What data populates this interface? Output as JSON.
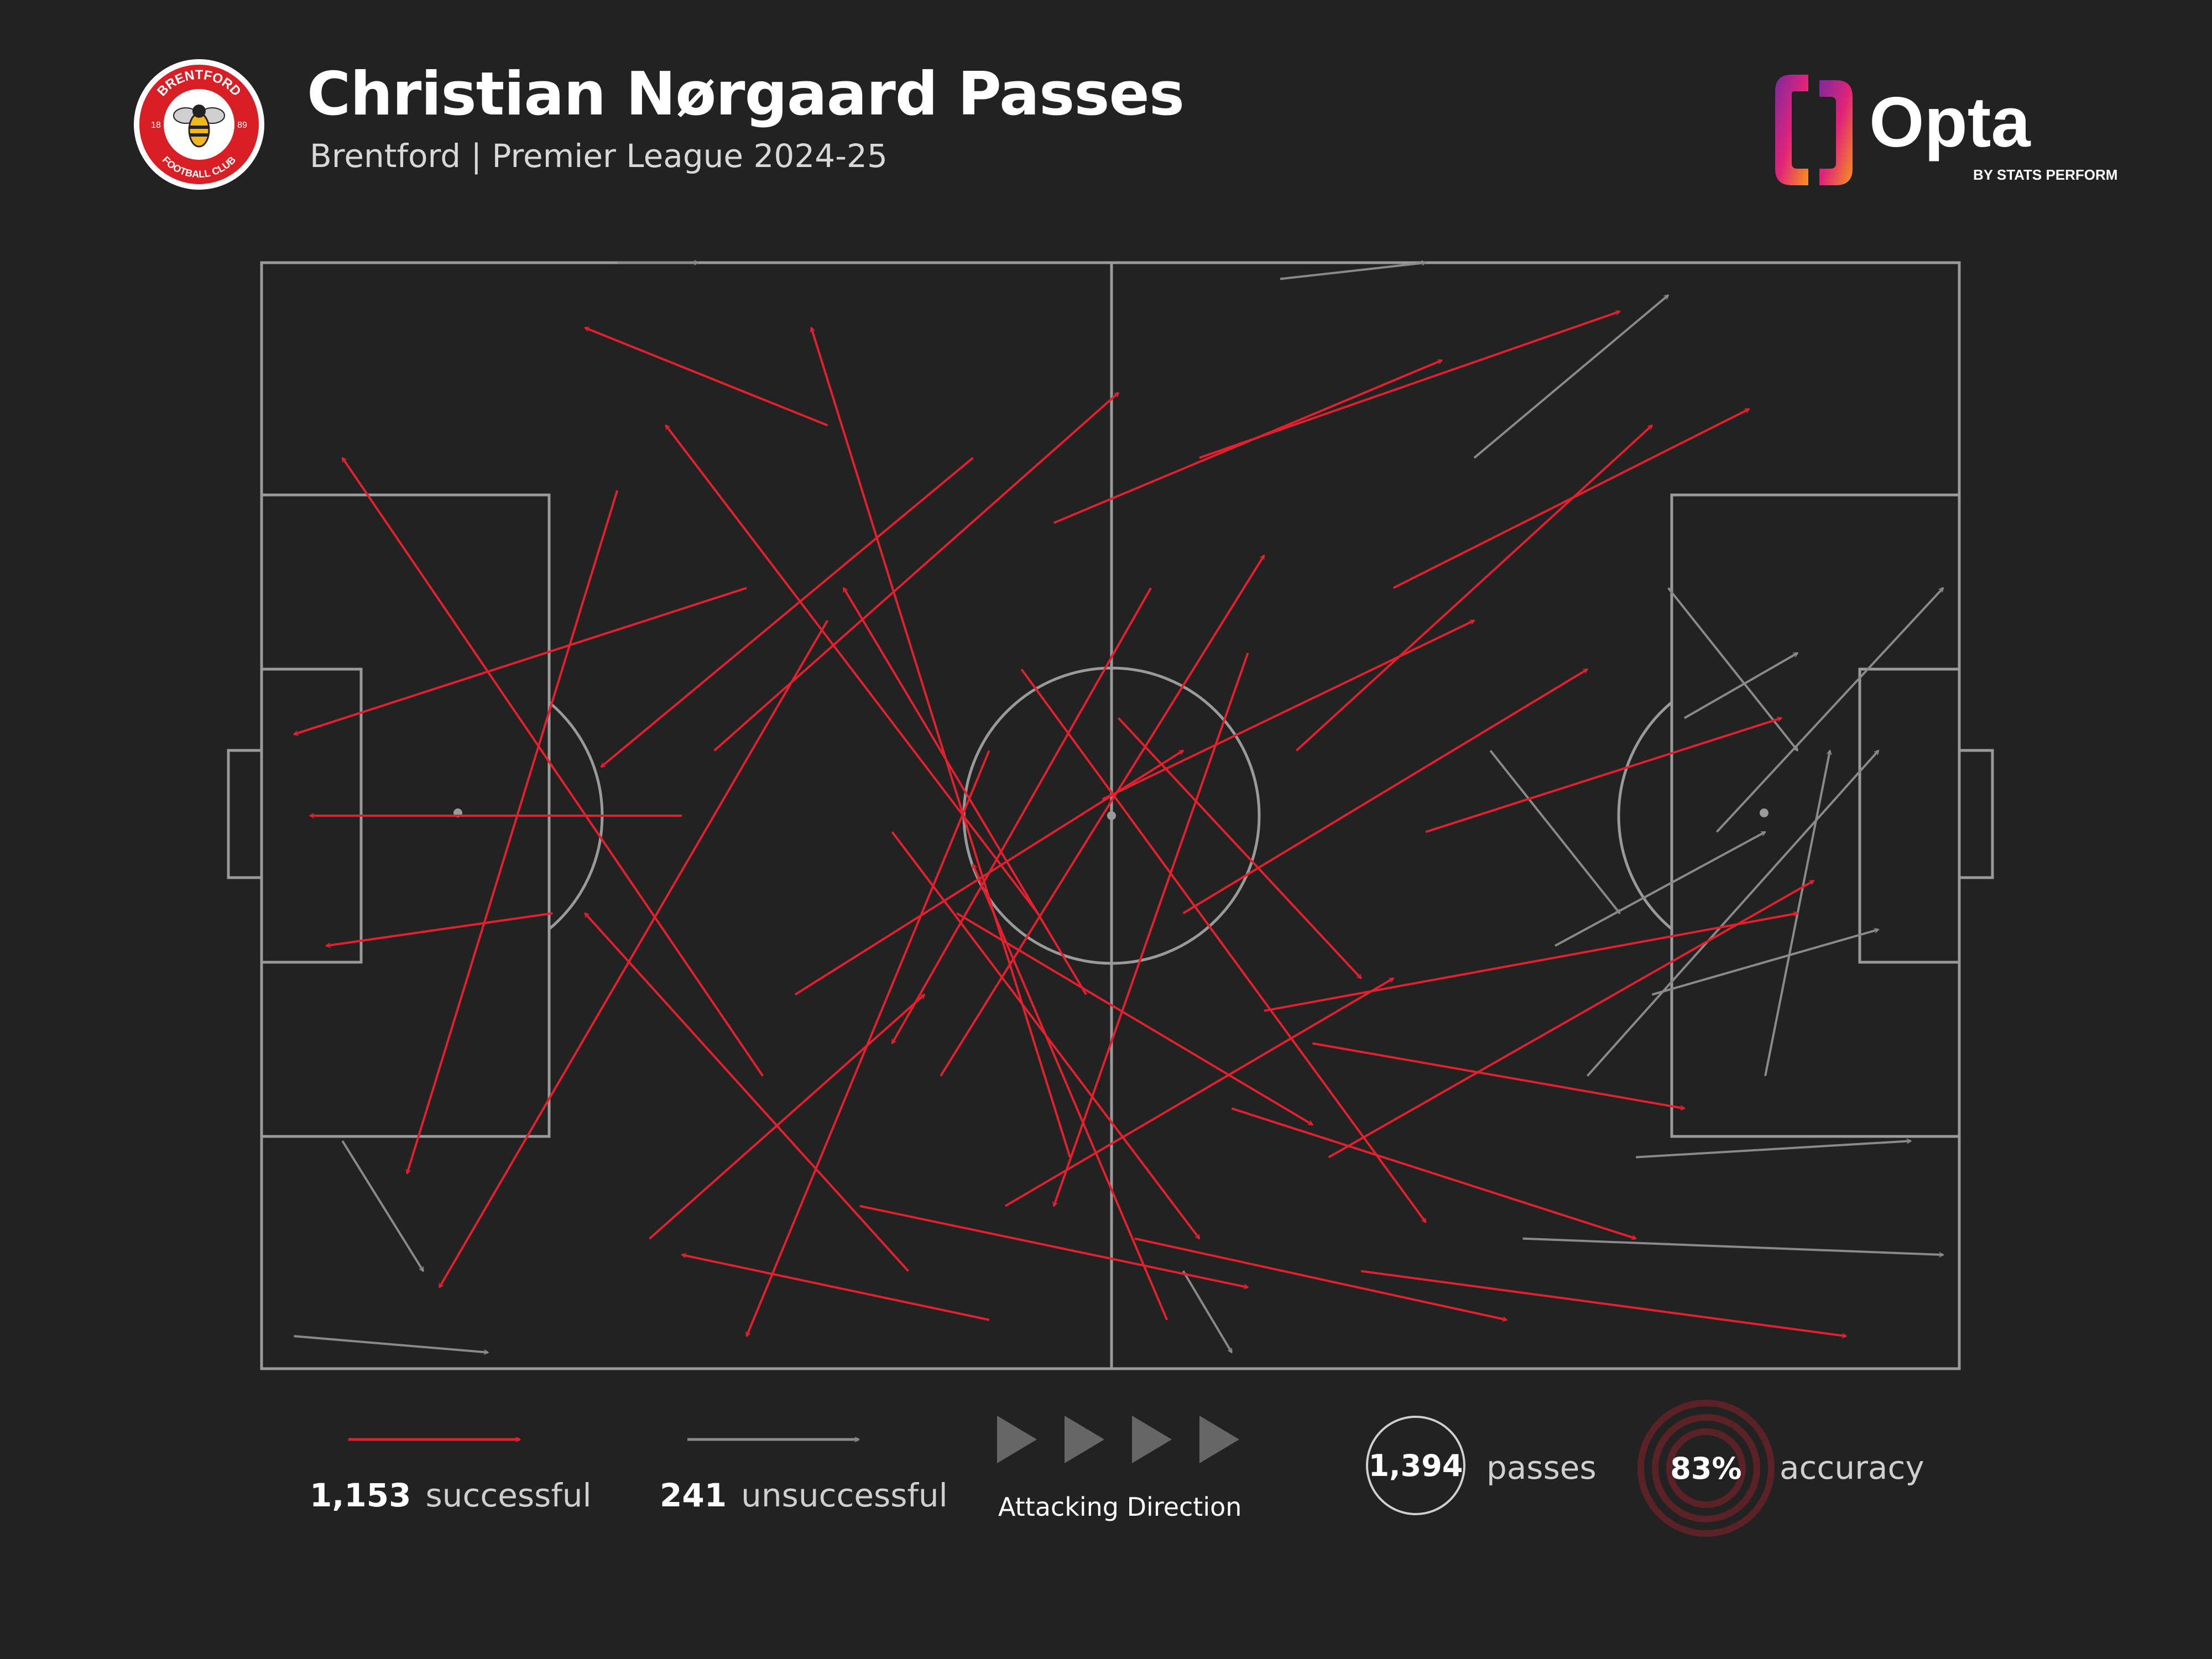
{
  "header": {
    "title": "Christian Nørgaard Passes",
    "subtitle": "Brentford | Premier League 2024-25"
  },
  "crest": {
    "top_text": "BRENTFORD",
    "bottom_text": "FOOTBALL CLUB",
    "left_year": "18",
    "right_year": "89"
  },
  "brand": {
    "name": "Opta",
    "tagline": "BY STATS PERFORM"
  },
  "colors": {
    "background": "#222222",
    "successful": "#e3202e",
    "unsuccessful": "#8a8a8a",
    "pitch_lines": "#9a9a9a",
    "accuracy_ring": "#5a2226"
  },
  "legend": {
    "successful_count": "1,153",
    "successful_label": "successful",
    "unsuccessful_count": "241",
    "unsuccessful_label": "unsuccessful",
    "attacking_direction": "Attacking Direction",
    "passes_total": "1,394",
    "passes_label": "passes",
    "accuracy_value": "83%",
    "accuracy_label": "accuracy"
  },
  "chart_data": {
    "type": "scatter",
    "subtype": "pass-map",
    "title": "Christian Nørgaard Passes",
    "subtitle": "Brentford | Premier League 2024-25",
    "pitch": {
      "length": 105,
      "width": 68,
      "attacking_direction": "left-to-right"
    },
    "totals": {
      "passes": 1394,
      "successful": 1153,
      "unsuccessful": 241,
      "accuracy_pct": 83
    },
    "series": [
      {
        "name": "successful",
        "color": "#e3202e",
        "count": 1153
      },
      {
        "name": "unsuccessful",
        "color": "#8a8a8a",
        "count": 241
      }
    ],
    "passes": [
      {
        "x1": 26,
        "y1": 34,
        "x2": 3,
        "y2": 34,
        "ok": 1
      },
      {
        "x1": 30,
        "y1": 20,
        "x2": 2,
        "y2": 29,
        "ok": 1
      },
      {
        "x1": 31,
        "y1": 50,
        "x2": 5,
        "y2": 12,
        "ok": 1
      },
      {
        "x1": 18,
        "y1": 40,
        "x2": 4,
        "y2": 42,
        "ok": 1
      },
      {
        "x1": 22,
        "y1": 14,
        "x2": 9,
        "y2": 56,
        "ok": 1
      },
      {
        "x1": 40,
        "y1": 62,
        "x2": 20,
        "y2": 40,
        "ok": 1
      },
      {
        "x1": 35,
        "y1": 22,
        "x2": 11,
        "y2": 63,
        "ok": 1
      },
      {
        "x1": 45,
        "y1": 30,
        "x2": 30,
        "y2": 66,
        "ok": 1
      },
      {
        "x1": 48,
        "y1": 40,
        "x2": 25,
        "y2": 10,
        "ok": 1
      },
      {
        "x1": 44,
        "y1": 12,
        "x2": 21,
        "y2": 31,
        "ok": 1
      },
      {
        "x1": 50,
        "y1": 55,
        "x2": 34,
        "y2": 4,
        "ok": 1
      },
      {
        "x1": 55,
        "y1": 20,
        "x2": 39,
        "y2": 48,
        "ok": 1
      },
      {
        "x1": 39,
        "y1": 35,
        "x2": 58,
        "y2": 60,
        "ok": 1
      },
      {
        "x1": 42,
        "y1": 50,
        "x2": 62,
        "y2": 18,
        "ok": 1
      },
      {
        "x1": 33,
        "y1": 45,
        "x2": 57,
        "y2": 30,
        "ok": 1
      },
      {
        "x1": 46,
        "y1": 58,
        "x2": 70,
        "y2": 44,
        "ok": 1
      },
      {
        "x1": 52,
        "y1": 33,
        "x2": 75,
        "y2": 22,
        "ok": 1
      },
      {
        "x1": 47,
        "y1": 25,
        "x2": 72,
        "y2": 59,
        "ok": 1
      },
      {
        "x1": 57,
        "y1": 40,
        "x2": 82,
        "y2": 25,
        "ok": 1
      },
      {
        "x1": 60,
        "y1": 52,
        "x2": 85,
        "y2": 60,
        "ok": 1
      },
      {
        "x1": 64,
        "y1": 30,
        "x2": 86,
        "y2": 10,
        "ok": 1
      },
      {
        "x1": 62,
        "y1": 46,
        "x2": 95,
        "y2": 40,
        "ok": 1
      },
      {
        "x1": 66,
        "y1": 55,
        "x2": 96,
        "y2": 38,
        "ok": 1
      },
      {
        "x1": 70,
        "y1": 20,
        "x2": 92,
        "y2": 9,
        "ok": 1
      },
      {
        "x1": 68,
        "y1": 62,
        "x2": 98,
        "y2": 66,
        "ok": 1
      },
      {
        "x1": 72,
        "y1": 35,
        "x2": 94,
        "y2": 28,
        "ok": 1
      },
      {
        "x1": 54,
        "y1": 60,
        "x2": 77,
        "y2": 65,
        "ok": 1
      },
      {
        "x1": 58,
        "y1": 12,
        "x2": 84,
        "y2": 3,
        "ok": 1
      },
      {
        "x1": 37,
        "y1": 58,
        "x2": 61,
        "y2": 63,
        "ok": 1
      },
      {
        "x1": 28,
        "y1": 30,
        "x2": 53,
        "y2": 8,
        "ok": 1
      },
      {
        "x1": 24,
        "y1": 60,
        "x2": 41,
        "y2": 45,
        "ok": 1
      },
      {
        "x1": 51,
        "y1": 45,
        "x2": 36,
        "y2": 20,
        "ok": 1
      },
      {
        "x1": 61,
        "y1": 24,
        "x2": 49,
        "y2": 58,
        "ok": 1
      },
      {
        "x1": 56,
        "y1": 65,
        "x2": 44,
        "y2": 37,
        "ok": 1
      },
      {
        "x1": 43,
        "y1": 40,
        "x2": 65,
        "y2": 53,
        "ok": 1
      },
      {
        "x1": 49,
        "y1": 16,
        "x2": 73,
        "y2": 6,
        "ok": 1
      },
      {
        "x1": 65,
        "y1": 48,
        "x2": 88,
        "y2": 52,
        "ok": 1
      },
      {
        "x1": 35,
        "y1": 10,
        "x2": 20,
        "y2": 4,
        "ok": 1
      },
      {
        "x1": 45,
        "y1": 65,
        "x2": 26,
        "y2": 61,
        "ok": 1
      },
      {
        "x1": 53,
        "y1": 28,
        "x2": 68,
        "y2": 44,
        "ok": 1
      },
      {
        "x1": 82,
        "y1": 50,
        "x2": 100,
        "y2": 30,
        "ok": 0
      },
      {
        "x1": 86,
        "y1": 45,
        "x2": 100,
        "y2": 41,
        "ok": 0
      },
      {
        "x1": 90,
        "y1": 35,
        "x2": 104,
        "y2": 20,
        "ok": 0
      },
      {
        "x1": 78,
        "y1": 60,
        "x2": 104,
        "y2": 61,
        "ok": 0
      },
      {
        "x1": 87,
        "y1": 20,
        "x2": 95,
        "y2": 30,
        "ok": 0
      },
      {
        "x1": 93,
        "y1": 50,
        "x2": 97,
        "y2": 30,
        "ok": 0
      },
      {
        "x1": 75,
        "y1": 12,
        "x2": 87,
        "y2": 2,
        "ok": 0
      },
      {
        "x1": 63,
        "y1": 1,
        "x2": 72,
        "y2": 0,
        "ok": 0
      },
      {
        "x1": 2,
        "y1": 66,
        "x2": 14,
        "y2": 67,
        "ok": 0
      },
      {
        "x1": 22,
        "y1": 0,
        "x2": 27,
        "y2": 0,
        "ok": 0
      },
      {
        "x1": 85,
        "y1": 55,
        "x2": 102,
        "y2": 54,
        "ok": 0
      },
      {
        "x1": 80,
        "y1": 42,
        "x2": 93,
        "y2": 35,
        "ok": 0
      },
      {
        "x1": 57,
        "y1": 62,
        "x2": 60,
        "y2": 67,
        "ok": 0
      },
      {
        "x1": 88,
        "y1": 28,
        "x2": 95,
        "y2": 24,
        "ok": 0
      },
      {
        "x1": 5,
        "y1": 54,
        "x2": 10,
        "y2": 62,
        "ok": 0
      },
      {
        "x1": 76,
        "y1": 30,
        "x2": 84,
        "y2": 40,
        "ok": 0
      }
    ]
  }
}
